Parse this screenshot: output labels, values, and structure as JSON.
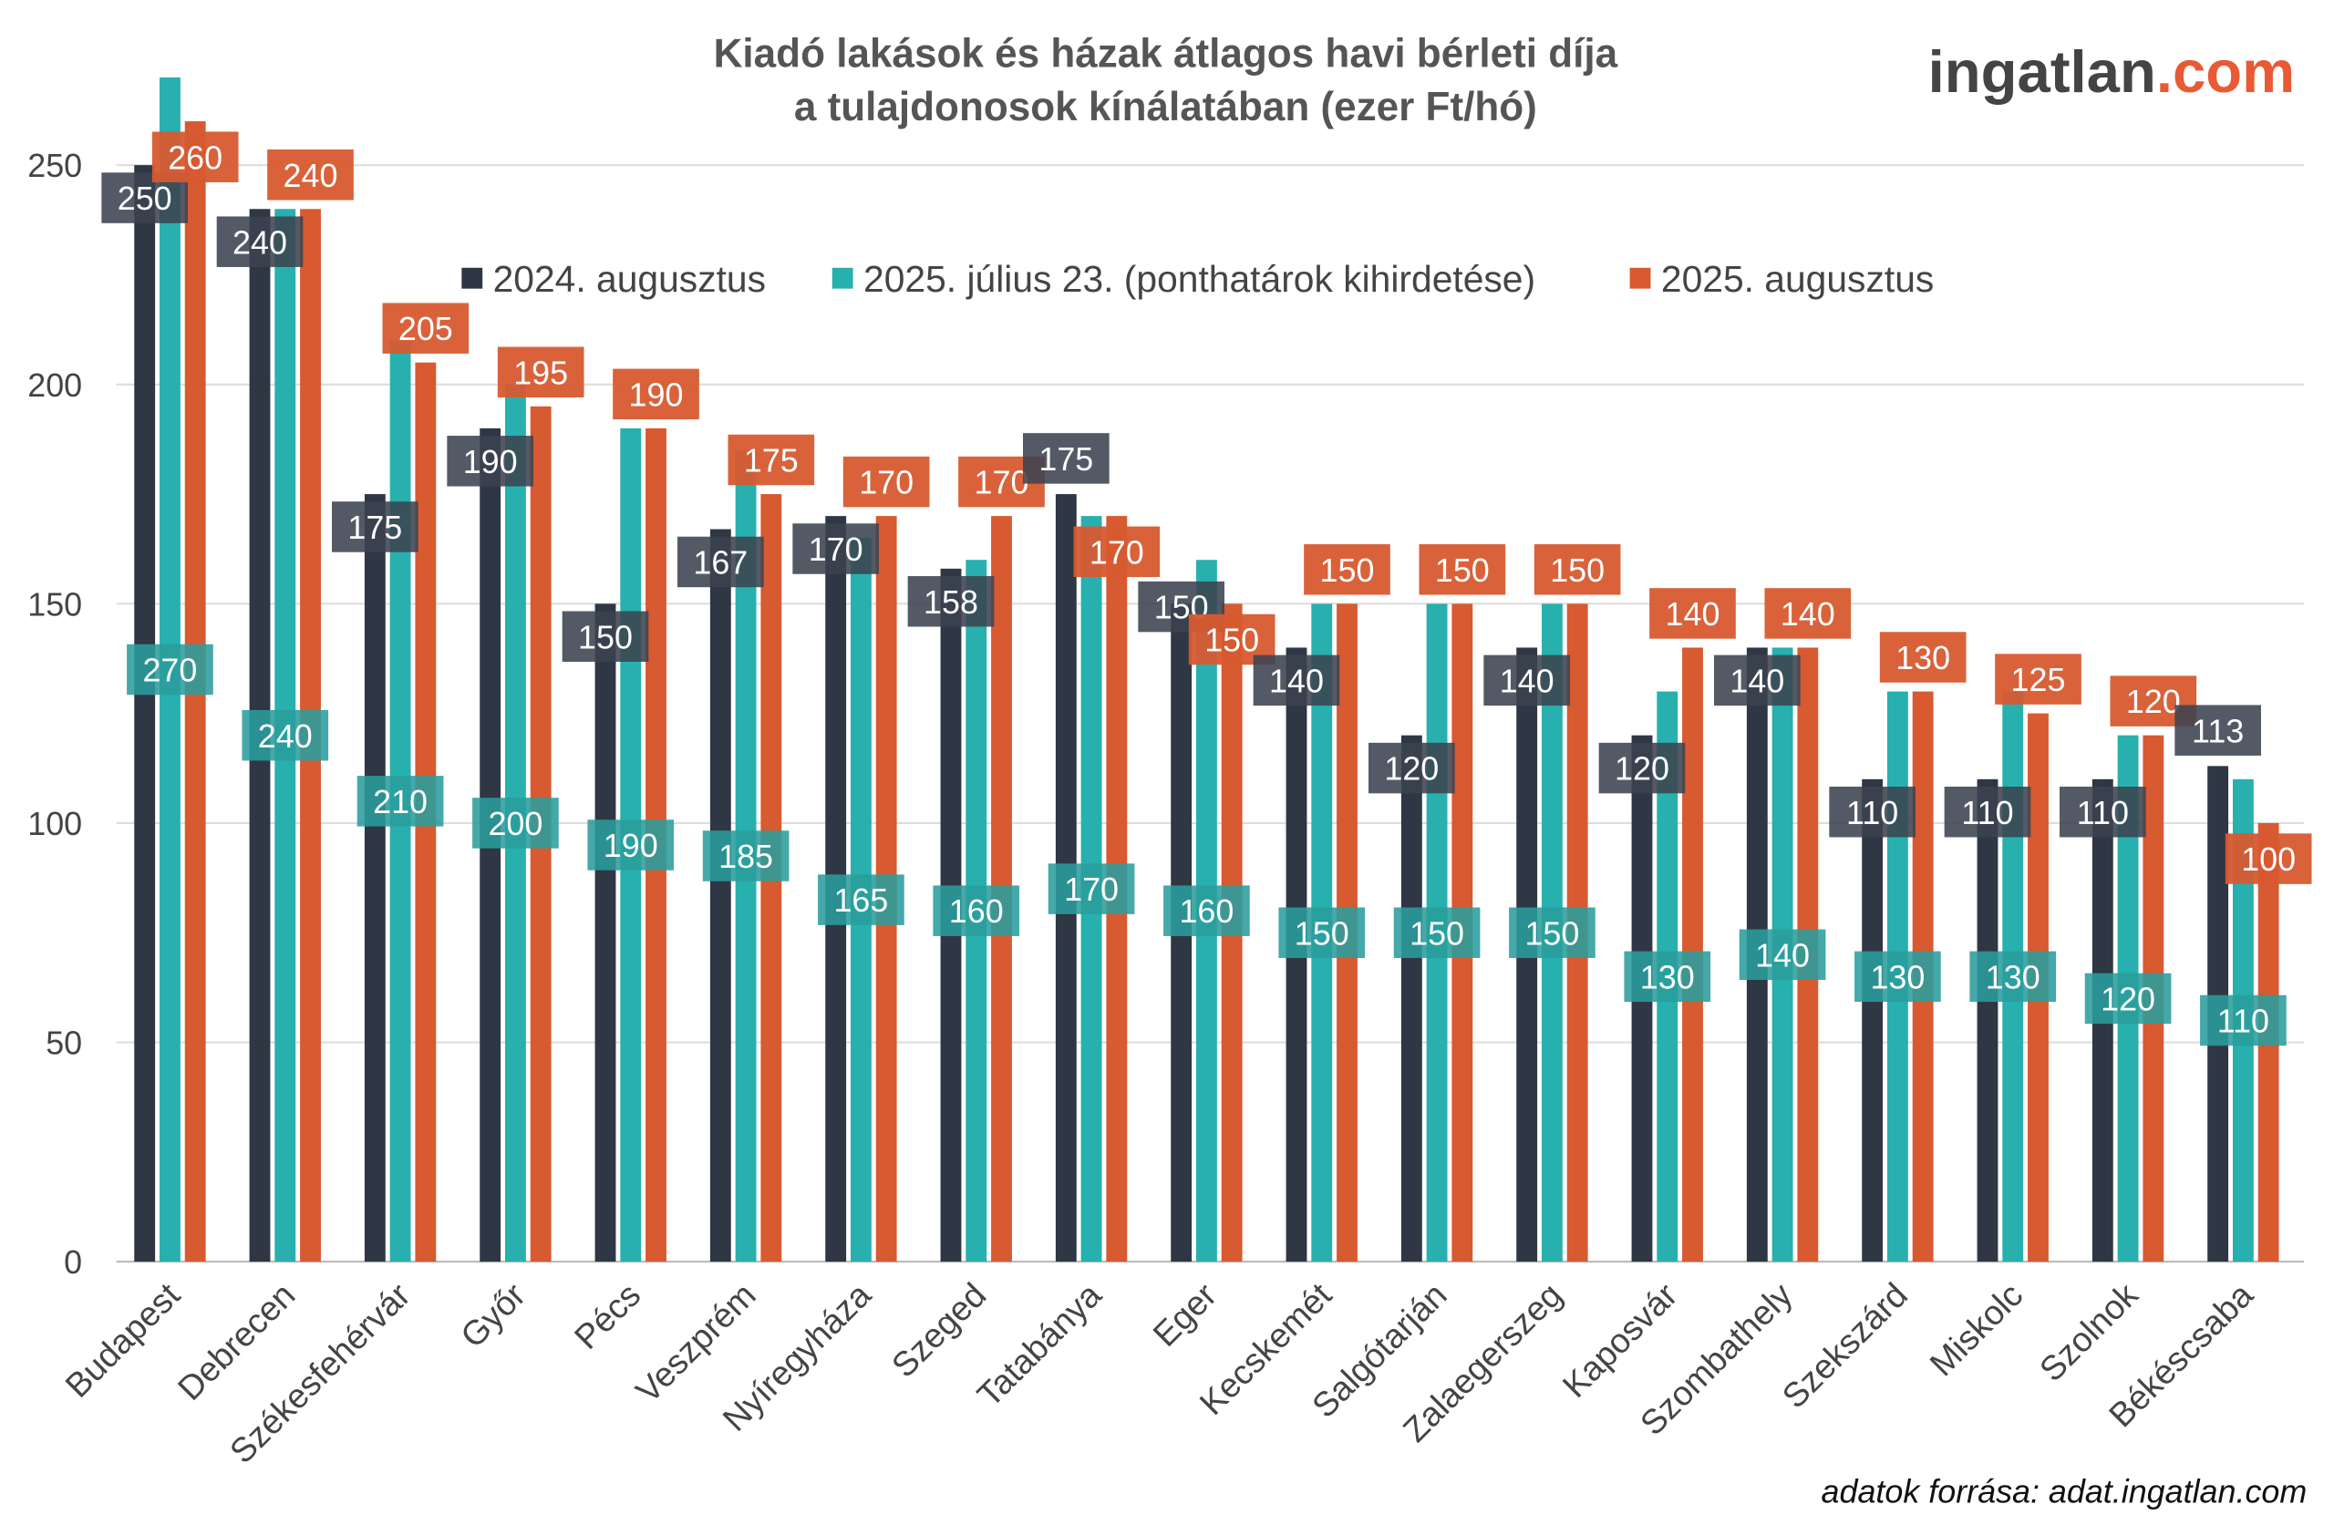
{
  "chart_data": {
    "type": "bar",
    "title": "Kiadó lakások és házak átlagos havi bérleti díja\na tulajdonosok kínálatában (ezer Ft/hó)",
    "title_lines": [
      "Kiadó lakások és házak átlagos havi bérleti díja",
      "a tulajdonosok kínálatában (ezer Ft/hó)"
    ],
    "xlabel": "",
    "ylabel": "",
    "ylim": [
      0,
      270
    ],
    "yticks": [
      0,
      50,
      100,
      150,
      200,
      250
    ],
    "grid": true,
    "legend_position": "top-center",
    "categories": [
      "Budapest",
      "Debrecen",
      "Székesfehérvár",
      "Győr",
      "Pécs",
      "Veszprém",
      "Nyíregyháza",
      "Szeged",
      "Tatabánya",
      "Eger",
      "Kecskemét",
      "Salgótarján",
      "Zalaegerszeg",
      "Kaposvár",
      "Szombathely",
      "Szekszárd",
      "Miskolc",
      "Szolnok",
      "Békéscsaba"
    ],
    "series": [
      {
        "name": "2024. augusztus",
        "color": "#2f3644",
        "values": [
          250,
          240,
          175,
          190,
          150,
          167,
          170,
          158,
          175,
          150,
          140,
          120,
          140,
          120,
          140,
          110,
          110,
          110,
          113
        ]
      },
      {
        "name": "2025. július 23. (ponthatárok kihirdetése)",
        "color": "#27b0ae",
        "values": [
          270,
          240,
          210,
          200,
          190,
          185,
          165,
          160,
          170,
          160,
          150,
          150,
          150,
          130,
          140,
          130,
          130,
          120,
          110
        ]
      },
      {
        "name": "2025. augusztus",
        "color": "#d75a30",
        "values": [
          260,
          240,
          205,
          195,
          190,
          175,
          170,
          170,
          170,
          150,
          150,
          150,
          150,
          140,
          140,
          130,
          125,
          120,
          100
        ]
      }
    ]
  },
  "logo": {
    "part1": "ingatlan",
    "part2": ".com"
  },
  "source": "adatok forrása: adat.ingatlan.com"
}
